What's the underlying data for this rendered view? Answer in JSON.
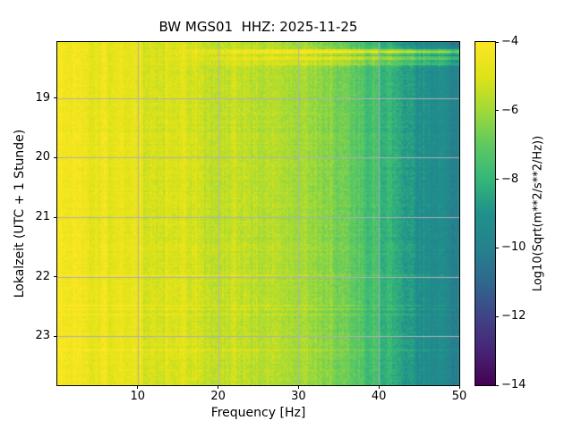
{
  "chart_data": {
    "type": "heatmap",
    "subtype": "spectrogram",
    "title": "BW MGS01  HHZ: 2025-11-25",
    "xlabel": "Frequency [Hz]",
    "ylabel": "Lokalzeit (UTC + 1 Stunde)",
    "colorbar_label": "Log10(Sqrt(m**2/s**2/Hz))",
    "colormap": "viridis",
    "clim": [
      -14,
      -4
    ],
    "colorbar_ticks": [
      -4,
      -6,
      -8,
      -10,
      -12,
      -14
    ],
    "xlim": [
      0,
      50
    ],
    "x_ticks": [
      10,
      20,
      30,
      40,
      50
    ],
    "y_ticks_hours": [
      19,
      20,
      21,
      22,
      23
    ],
    "y_top_hour": 18.06,
    "y_bottom_hour": 23.82,
    "grid": true,
    "grid_color": "#b0b0b0",
    "spine_color": "#000000",
    "background": "#ffffff",
    "power_profile": {
      "freqs_hz": [
        0,
        2,
        5,
        8,
        10,
        13,
        16,
        20,
        24,
        28,
        31,
        34,
        37,
        40,
        43,
        46,
        48,
        50
      ],
      "log10_values": [
        -4.35,
        -4.4,
        -4.5,
        -4.65,
        -4.85,
        -5.05,
        -5.15,
        -5.4,
        -5.5,
        -5.6,
        -5.9,
        -6.5,
        -7.1,
        -7.7,
        -8.4,
        -9.0,
        -9.4,
        -9.7
      ]
    },
    "events": [
      {
        "time_frac": 0.006,
        "min_freq_hz": 30,
        "max_boost": -1.2
      },
      {
        "time_frac": 0.028,
        "min_freq_hz": 12,
        "max_boost": 3.4
      },
      {
        "time_frac": 0.047,
        "min_freq_hz": 12,
        "max_boost": 2.6
      },
      {
        "time_frac": 0.063,
        "min_freq_hz": 14,
        "max_boost": 1.6
      }
    ]
  }
}
